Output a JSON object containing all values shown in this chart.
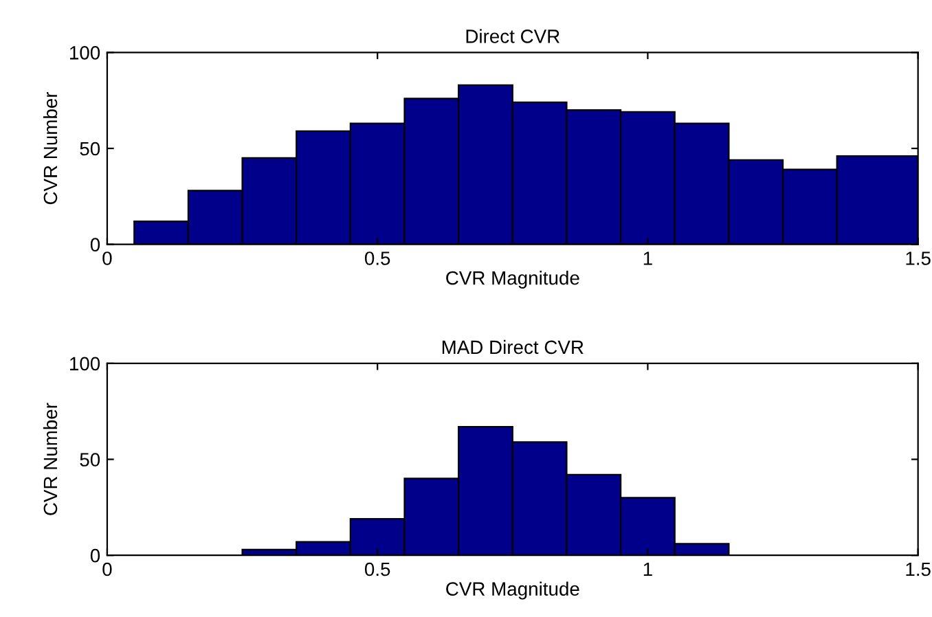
{
  "chart_data": [
    {
      "type": "histogram",
      "title": "Direct CVR",
      "xlabel": "CVR Magnitude",
      "ylabel": "CVR Number",
      "color": "#00008b",
      "bins": [
        0.05,
        0.15,
        0.25,
        0.35,
        0.45,
        0.55,
        0.65,
        0.75,
        0.85,
        0.95,
        1.05,
        1.15,
        1.25,
        1.35,
        1.5
      ],
      "values": [
        12,
        28,
        45,
        59,
        63,
        76,
        83,
        74,
        70,
        69,
        63,
        44,
        39,
        46
      ],
      "xlim": [
        0,
        1.5
      ],
      "xticks": [
        0,
        0.5,
        1,
        1.5
      ],
      "ylim": [
        0,
        100
      ],
      "yticks": [
        0,
        50,
        100
      ],
      "grid": false
    },
    {
      "type": "histogram",
      "title": "MAD Direct CVR",
      "xlabel": "CVR Magnitude",
      "ylabel": "CVR Number",
      "color": "#00008b",
      "bins": [
        0.25,
        0.35,
        0.45,
        0.55,
        0.65,
        0.75,
        0.85,
        0.95,
        1.05,
        1.15
      ],
      "values": [
        3,
        7,
        19,
        40,
        67,
        59,
        42,
        30,
        6
      ],
      "xlim": [
        0,
        1.5
      ],
      "xticks": [
        0,
        0.5,
        1,
        1.5
      ],
      "ylim": [
        0,
        100
      ],
      "yticks": [
        0,
        50,
        100
      ],
      "grid": false
    }
  ]
}
